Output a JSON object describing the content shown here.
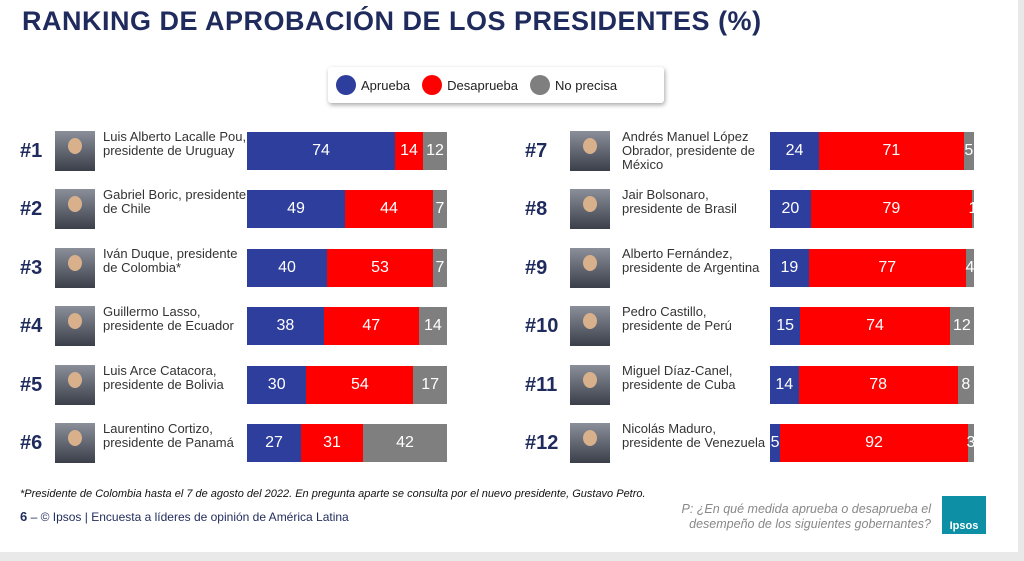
{
  "title": "RANKING DE APROBACIÓN DE LOS PRESIDENTES (%)",
  "colors": {
    "aprueba": "#2e3e9c",
    "desaprueba": "#ff0000",
    "no_precisa": "#7f7f7f",
    "title": "#1f2b5c"
  },
  "chart_data": {
    "type": "bar",
    "orientation": "horizontal-stacked",
    "legend": [
      "Aprueba",
      "Desaprueba",
      "No precisa"
    ],
    "legend_placement": "top",
    "rows": [
      {
        "rank": "#1",
        "name": "Luis Alberto Lacalle Pou, presidente de Uruguay",
        "values": [
          74,
          14,
          12
        ]
      },
      {
        "rank": "#2",
        "name": "Gabriel Boric, presidente de Chile",
        "values": [
          49,
          44,
          7
        ]
      },
      {
        "rank": "#3",
        "name": "Iván Duque, presidente de Colombia*",
        "values": [
          40,
          53,
          7
        ]
      },
      {
        "rank": "#4",
        "name": "Guillermo Lasso, presidente de Ecuador",
        "values": [
          38,
          47,
          14
        ]
      },
      {
        "rank": "#5",
        "name": "Luis Arce Catacora, presidente de Bolivia",
        "values": [
          30,
          54,
          17
        ]
      },
      {
        "rank": "#6",
        "name": "Laurentino Cortizo, presidente de Panamá",
        "values": [
          27,
          31,
          42
        ]
      },
      {
        "rank": "#7",
        "name": "Andrés Manuel López Obrador, presidente de México",
        "values": [
          24,
          71,
          5
        ]
      },
      {
        "rank": "#8",
        "name": "Jair Bolsonaro, presidente de Brasil",
        "values": [
          20,
          79,
          1
        ]
      },
      {
        "rank": "#9",
        "name": "Alberto Fernández, presidente de Argentina",
        "values": [
          19,
          77,
          4
        ]
      },
      {
        "rank": "#10",
        "name": "Pedro Castillo, presidente de Perú",
        "values": [
          15,
          74,
          12
        ]
      },
      {
        "rank": "#11",
        "name": "Miguel Díaz-Canel, presidente de Cuba",
        "values": [
          14,
          78,
          8
        ]
      },
      {
        "rank": "#12",
        "name": "Nicolás Maduro, presidente de Venezuela",
        "values": [
          5,
          92,
          3
        ]
      }
    ]
  },
  "footnote": "*Presidente de Colombia hasta el 7 de agosto del 2022. En pregunta aparte se consulta por el nuevo presidente, Gustavo Petro.",
  "page_number": "6",
  "source": "© Ipsos | Encuesta a líderes de opinión de América Latina",
  "question": "P: ¿En qué medida aprueba o desaprueba el desempeño de los siguientes gobernantes?",
  "logo": "Ipsos"
}
